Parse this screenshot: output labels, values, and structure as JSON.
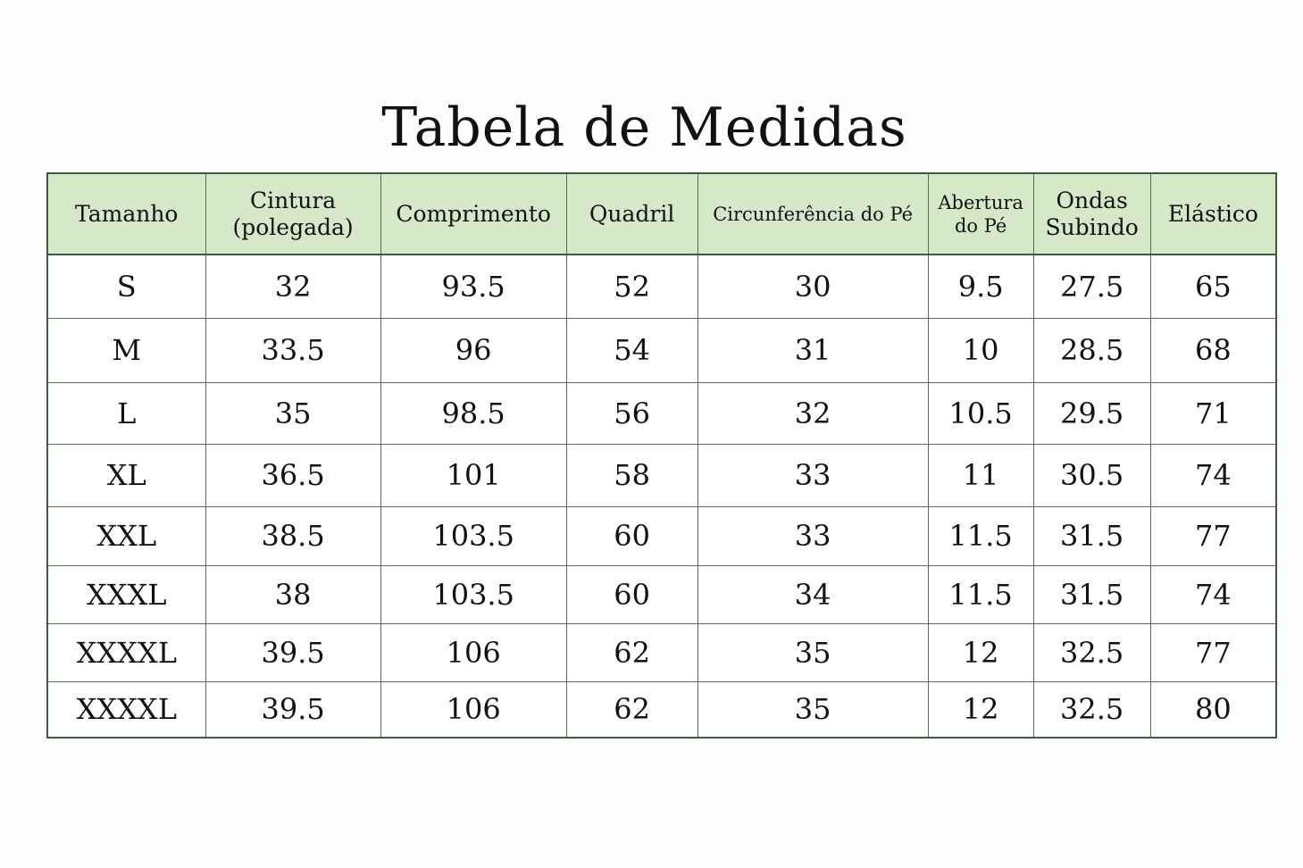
{
  "title": "Tabela de Medidas",
  "table": {
    "header_bg": "#d5e8c8",
    "border_color": "#3d5a3d",
    "columns": [
      "Tamanho",
      "Cintura (polegada)",
      "Comprimento",
      "Quadril",
      "Circunferência do Pé",
      "Abertura do Pé",
      "Ondas Subindo",
      "Elástico"
    ],
    "rows": [
      [
        "S",
        "32",
        "93.5",
        "52",
        "30",
        "9.5",
        "27.5",
        "65"
      ],
      [
        "M",
        "33.5",
        "96",
        "54",
        "31",
        "10",
        "28.5",
        "68"
      ],
      [
        "L",
        "35",
        "98.5",
        "56",
        "32",
        "10.5",
        "29.5",
        "71"
      ],
      [
        "XL",
        "36.5",
        "101",
        "58",
        "33",
        "11",
        "30.5",
        "74"
      ],
      [
        "XXL",
        "38.5",
        "103.5",
        "60",
        "33",
        "11.5",
        "31.5",
        "77"
      ],
      [
        "XXXL",
        "38",
        "103.5",
        "60",
        "34",
        "11.5",
        "31.5",
        "74"
      ],
      [
        "XXXXL",
        "39.5",
        "106",
        "62",
        "35",
        "12",
        "32.5",
        "77"
      ],
      [
        "XXXXL",
        "39.5",
        "106",
        "62",
        "35",
        "12",
        "32.5",
        "80"
      ]
    ]
  }
}
